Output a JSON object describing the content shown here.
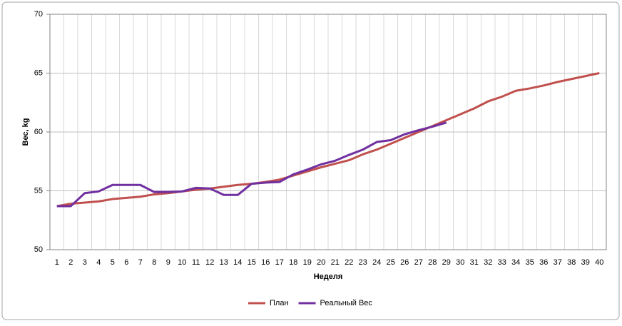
{
  "chart_data": {
    "type": "line",
    "x_label": "Неделя",
    "y_label": "Вес, kg",
    "x": [
      1,
      2,
      3,
      4,
      5,
      6,
      7,
      8,
      9,
      10,
      11,
      12,
      13,
      14,
      15,
      16,
      17,
      18,
      19,
      20,
      21,
      22,
      23,
      24,
      25,
      26,
      27,
      28,
      29,
      30,
      31,
      32,
      33,
      34,
      35,
      36,
      37,
      38,
      39,
      40
    ],
    "xlim": [
      0.5,
      40.5
    ],
    "ylim": [
      50,
      70
    ],
    "yticks": [
      50,
      55,
      60,
      65,
      70
    ],
    "grid": true,
    "legend": "bottom",
    "series": [
      {
        "name": "План",
        "color": "#c0504d",
        "values": [
          53.7,
          53.9,
          54.0,
          54.1,
          54.3,
          54.4,
          54.5,
          54.7,
          54.8,
          54.95,
          55.1,
          55.2,
          55.35,
          55.5,
          55.6,
          55.75,
          55.95,
          56.3,
          56.65,
          57.0,
          57.3,
          57.6,
          58.1,
          58.5,
          59.0,
          59.5,
          60.0,
          60.5,
          61.0,
          61.5,
          62.0,
          62.6,
          63.0,
          63.5,
          63.7,
          63.95,
          64.25,
          64.5,
          64.75,
          65.0
        ]
      },
      {
        "name": "Реальный Вес",
        "color": "#7030a0",
        "values": [
          53.7,
          53.7,
          54.8,
          54.95,
          55.5,
          55.5,
          55.5,
          54.9,
          54.9,
          54.95,
          55.25,
          55.2,
          54.65,
          54.65,
          55.6,
          55.7,
          55.75,
          56.4,
          56.8,
          57.25,
          57.55,
          58.05,
          58.5,
          59.15,
          59.3,
          59.8,
          60.15,
          60.45,
          60.8,
          null,
          null,
          null,
          null,
          null,
          null,
          null,
          null,
          null,
          null,
          null
        ]
      }
    ]
  }
}
